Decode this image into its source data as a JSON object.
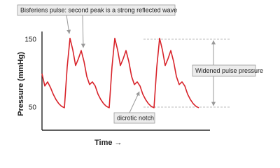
{
  "chart_data": {
    "type": "line",
    "y_label": "Pressure (mmHg)",
    "x_label": "Time →",
    "annotations": [
      "Bisferiens pulse: second peak is a strong reflected wave",
      "Widened pulse pressure",
      "dicrotic notch"
    ],
    "categories": [
      null,
      null,
      null,
      null,
      null,
      null,
      null,
      null,
      null,
      null,
      null,
      null,
      null,
      null,
      null,
      null,
      null,
      null,
      null,
      null,
      null,
      null,
      null,
      null,
      null,
      null,
      null,
      null,
      null,
      null,
      null,
      null,
      null,
      null,
      null,
      null,
      null,
      null,
      null,
      null,
      null,
      null,
      null,
      null,
      null,
      null,
      null,
      null,
      null,
      null,
      null,
      null,
      null,
      null,
      null,
      null,
      null
    ],
    "values": [
      100,
      82,
      88,
      80,
      70,
      62,
      56,
      52,
      50,
      110,
      152,
      135,
      112,
      122,
      134,
      118,
      96,
      84,
      88,
      82,
      70,
      62,
      56,
      52,
      50,
      110,
      152,
      135,
      112,
      122,
      134,
      118,
      96,
      84,
      88,
      82,
      70,
      62,
      56,
      52,
      50,
      110,
      152,
      135,
      112,
      122,
      134,
      118,
      96,
      84,
      88,
      82,
      70,
      62,
      56,
      52,
      50
    ],
    "color": "#d8232a",
    "ylim": [
      17,
      162
    ],
    "yticks": [
      50,
      150
    ],
    "grid": false
  }
}
